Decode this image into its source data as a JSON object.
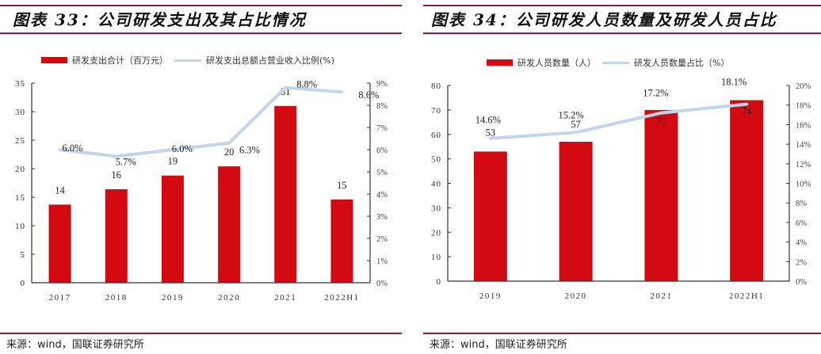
{
  "left_panel": {
    "title": "图表 33：公司研发支出及其占比情况",
    "legend": {
      "bar_label": "研发支出合计（百万元）",
      "line_label": "研发支出总额占营业收入比例(%)"
    },
    "source": "来源：wind，国联证券研究所"
  },
  "right_panel": {
    "title": "图表 34：公司研发人员数量及研发人员占比",
    "legend": {
      "bar_label": "研发人员数量（人）",
      "line_label": "研发人员数量占比（%）"
    },
    "source": "来源：wind，国联证券研究所"
  },
  "colors": {
    "bar": "#d40a12",
    "line": "#c3d5e8",
    "rule": "#7a1f45",
    "axis": "#333333"
  },
  "chart_data": [
    {
      "type": "bar+line",
      "title": "图表 33：公司研发支出及其占比情况",
      "categories": [
        "2017",
        "2018",
        "2019",
        "2020",
        "2021",
        "2022H1"
      ],
      "series": [
        {
          "name": "研发支出合计（百万元）",
          "type": "bar",
          "axis": "left",
          "values": [
            13.7,
            16.4,
            18.8,
            20.4,
            31.0,
            14.6
          ],
          "labels": [
            "14",
            "16",
            "19",
            "20",
            "31",
            "15"
          ]
        },
        {
          "name": "研发支出总额占营业收入比例(%)",
          "type": "line",
          "axis": "right",
          "values": [
            6.0,
            5.7,
            6.0,
            6.3,
            8.8,
            8.6
          ],
          "labels": [
            "6.0%",
            "5.7%",
            "6.0%",
            "6.3%",
            "8.8%",
            "8.6%"
          ]
        }
      ],
      "y_left": {
        "min": 0,
        "max": 35,
        "ticks": [
          "0",
          "5",
          "10",
          "15",
          "20",
          "25",
          "30",
          "35"
        ]
      },
      "y_right": {
        "min": 0,
        "max": 9,
        "ticks": [
          "0%",
          "1%",
          "2%",
          "3%",
          "4%",
          "5%",
          "6%",
          "7%",
          "8%",
          "9%"
        ]
      },
      "legend_position": "top",
      "grid": false
    },
    {
      "type": "bar+line",
      "title": "图表 34：公司研发人员数量及研发人员占比",
      "categories": [
        "2019",
        "2020",
        "2021",
        "2022H1"
      ],
      "series": [
        {
          "name": "研发人员数量（人）",
          "type": "bar",
          "axis": "left",
          "values": [
            53,
            57,
            70,
            74
          ],
          "labels": [
            "53",
            "57",
            "70",
            "74"
          ]
        },
        {
          "name": "研发人员数量占比（%）",
          "type": "line",
          "axis": "right",
          "values": [
            14.6,
            15.2,
            17.2,
            18.1
          ],
          "labels": [
            "14.6%",
            "15.2%",
            "17.2%",
            "18.1%"
          ]
        }
      ],
      "y_left": {
        "min": 0,
        "max": 80,
        "ticks": [
          "0",
          "10",
          "20",
          "30",
          "40",
          "50",
          "60",
          "70",
          "80"
        ]
      },
      "y_right": {
        "min": 0,
        "max": 20,
        "ticks": [
          "0%",
          "2%",
          "4%",
          "6%",
          "8%",
          "10%",
          "12%",
          "14%",
          "16%",
          "18%",
          "20%"
        ]
      },
      "legend_position": "top",
      "grid": false
    }
  ]
}
